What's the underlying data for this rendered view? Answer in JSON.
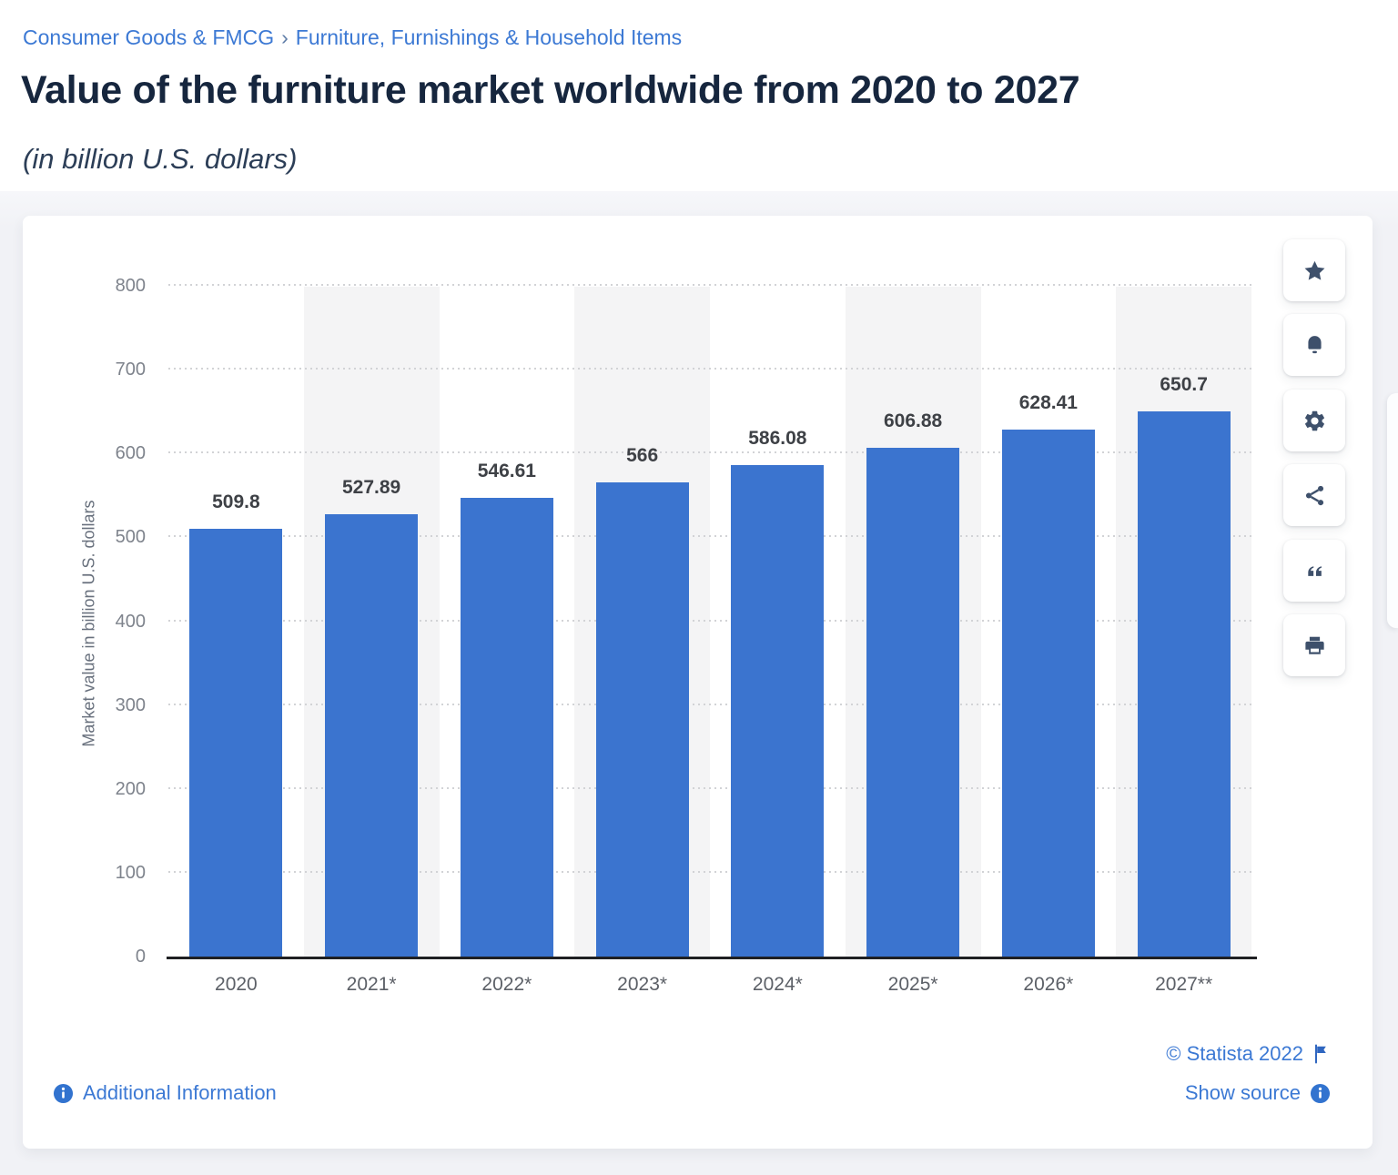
{
  "breadcrumb": {
    "category": "Consumer Goods & FMCG",
    "separator": "›",
    "subcategory": "Furniture, Furnishings & Household Items"
  },
  "header": {
    "title": "Value of the furniture market worldwide from 2020 to 2027",
    "subtitle": "(in billion U.S. dollars)"
  },
  "chart_data": {
    "type": "bar",
    "title": "Value of the furniture market worldwide from 2020 to 2027",
    "subtitle": "(in billion U.S. dollars)",
    "categories": [
      "2020",
      "2021*",
      "2022*",
      "2023*",
      "2024*",
      "2025*",
      "2026*",
      "2027**"
    ],
    "values": [
      509.8,
      527.89,
      546.61,
      566,
      586.08,
      606.88,
      628.41,
      650.7
    ],
    "value_labels": [
      "509.8",
      "527.89",
      "546.61",
      "566",
      "586.08",
      "606.88",
      "628.41",
      "650.7"
    ],
    "xlabel": "",
    "ylabel": "Market value in billion U.S. dollars",
    "ylim": [
      0,
      800
    ],
    "yticks": [
      0,
      100,
      200,
      300,
      400,
      500,
      600,
      700,
      800
    ],
    "grid": "horizontal-dotted",
    "legend": "none",
    "bar_color": "#3b74cf",
    "stripe_color": "#f4f4f5",
    "striped_columns": [
      1,
      3,
      5,
      7
    ]
  },
  "toolbar": {
    "icons": [
      {
        "name": "star-icon"
      },
      {
        "name": "bell-icon"
      },
      {
        "name": "gear-icon"
      },
      {
        "name": "share-icon"
      },
      {
        "name": "quote-icon"
      },
      {
        "name": "print-icon"
      }
    ]
  },
  "footer": {
    "copyright": "© Statista 2022",
    "show_source": "Show source",
    "additional_information": "Additional Information"
  },
  "colors": {
    "accent_blue": "#3b74cf",
    "link_blue": "#3c79d4",
    "title_navy": "#16263e",
    "icon_navy": "#3e506b",
    "info_icon_blue": "#3273cf",
    "page_background": "#f1f2f6",
    "column_stripe": "#f4f4f5"
  }
}
